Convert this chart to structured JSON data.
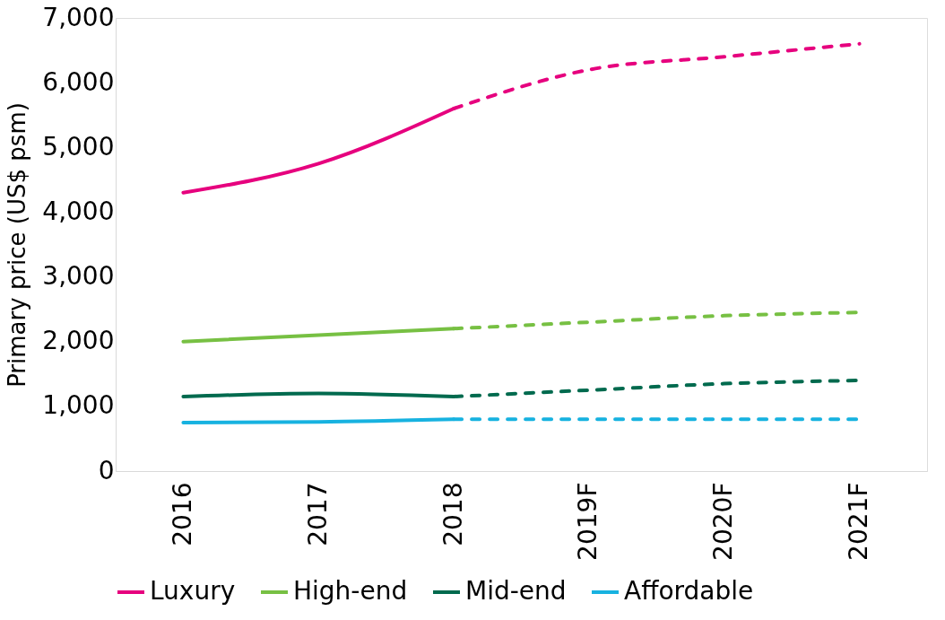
{
  "chart_data": {
    "type": "line",
    "ylabel": "Primary price (US$ psm)",
    "categories": [
      "2016",
      "2017",
      "2018",
      "2019F",
      "2020F",
      "2021F"
    ],
    "ylim": [
      0,
      7000
    ],
    "yticks": [
      {
        "value": 0,
        "label": "0"
      },
      {
        "value": 1000,
        "label": "1,000"
      },
      {
        "value": 2000,
        "label": "2,000"
      },
      {
        "value": 3000,
        "label": "3,000"
      },
      {
        "value": 4000,
        "label": "4,000"
      },
      {
        "value": 5000,
        "label": "5,000"
      },
      {
        "value": 6000,
        "label": "6,000"
      },
      {
        "value": 7000,
        "label": "7,000"
      }
    ],
    "grid": false,
    "legend": "bottom",
    "marker": "none",
    "series": [
      {
        "name": "Luxury",
        "color": "#e6007e",
        "line_style": "solid",
        "values": [
          4300,
          4750,
          5600,
          null,
          null,
          null
        ]
      },
      {
        "name": "High-end",
        "color": "#77c043",
        "line_style": "solid",
        "values": [
          2000,
          2100,
          2200,
          null,
          null,
          null
        ]
      },
      {
        "name": "Mid-end",
        "color": "#006a4e",
        "line_style": "solid",
        "values": [
          1150,
          1200,
          1150,
          null,
          null,
          null
        ]
      },
      {
        "name": "Affordable",
        "color": "#17b2e0",
        "line_style": "solid",
        "values": [
          750,
          760,
          800,
          null,
          null,
          null
        ]
      },
      {
        "color": "#e6007e",
        "line_style": "dashed",
        "values": [
          null,
          null,
          5600,
          6200,
          6400,
          6600
        ]
      },
      {
        "color": "#77c043",
        "line_style": "dashed",
        "values": [
          null,
          null,
          2200,
          2300,
          2400,
          2450
        ]
      },
      {
        "color": "#006a4e",
        "line_style": "dashed",
        "values": [
          null,
          null,
          1150,
          1250,
          1350,
          1400
        ]
      },
      {
        "color": "#17b2e0",
        "line_style": "dashed",
        "values": [
          null,
          null,
          800,
          800,
          800,
          800
        ]
      }
    ]
  }
}
